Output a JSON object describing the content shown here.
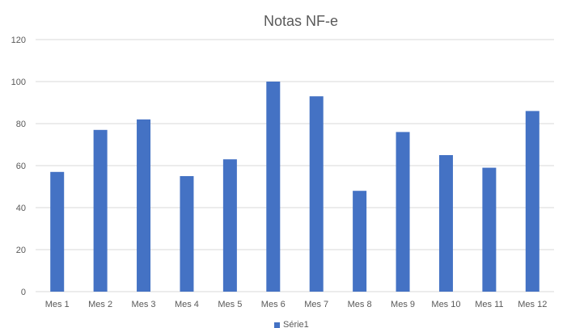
{
  "chart_data": {
    "type": "bar",
    "title": "Notas NF-e",
    "categories": [
      "Mes 1",
      "Mes 2",
      "Mes 3",
      "Mes 4",
      "Mes 5",
      "Mes 6",
      "Mes 7",
      "Mes 8",
      "Mes 9",
      "Mes 10",
      "Mes 11",
      "Mes 12"
    ],
    "series": [
      {
        "name": "Série1",
        "values": [
          57,
          77,
          82,
          55,
          63,
          100,
          93,
          48,
          76,
          65,
          59,
          86
        ],
        "color": "#4472c4"
      }
    ],
    "ylim": [
      0,
      120
    ],
    "yticks": [
      "0",
      "20",
      "40",
      "60",
      "80",
      "100",
      "120"
    ],
    "grid": true,
    "legend_position": "bottom"
  }
}
